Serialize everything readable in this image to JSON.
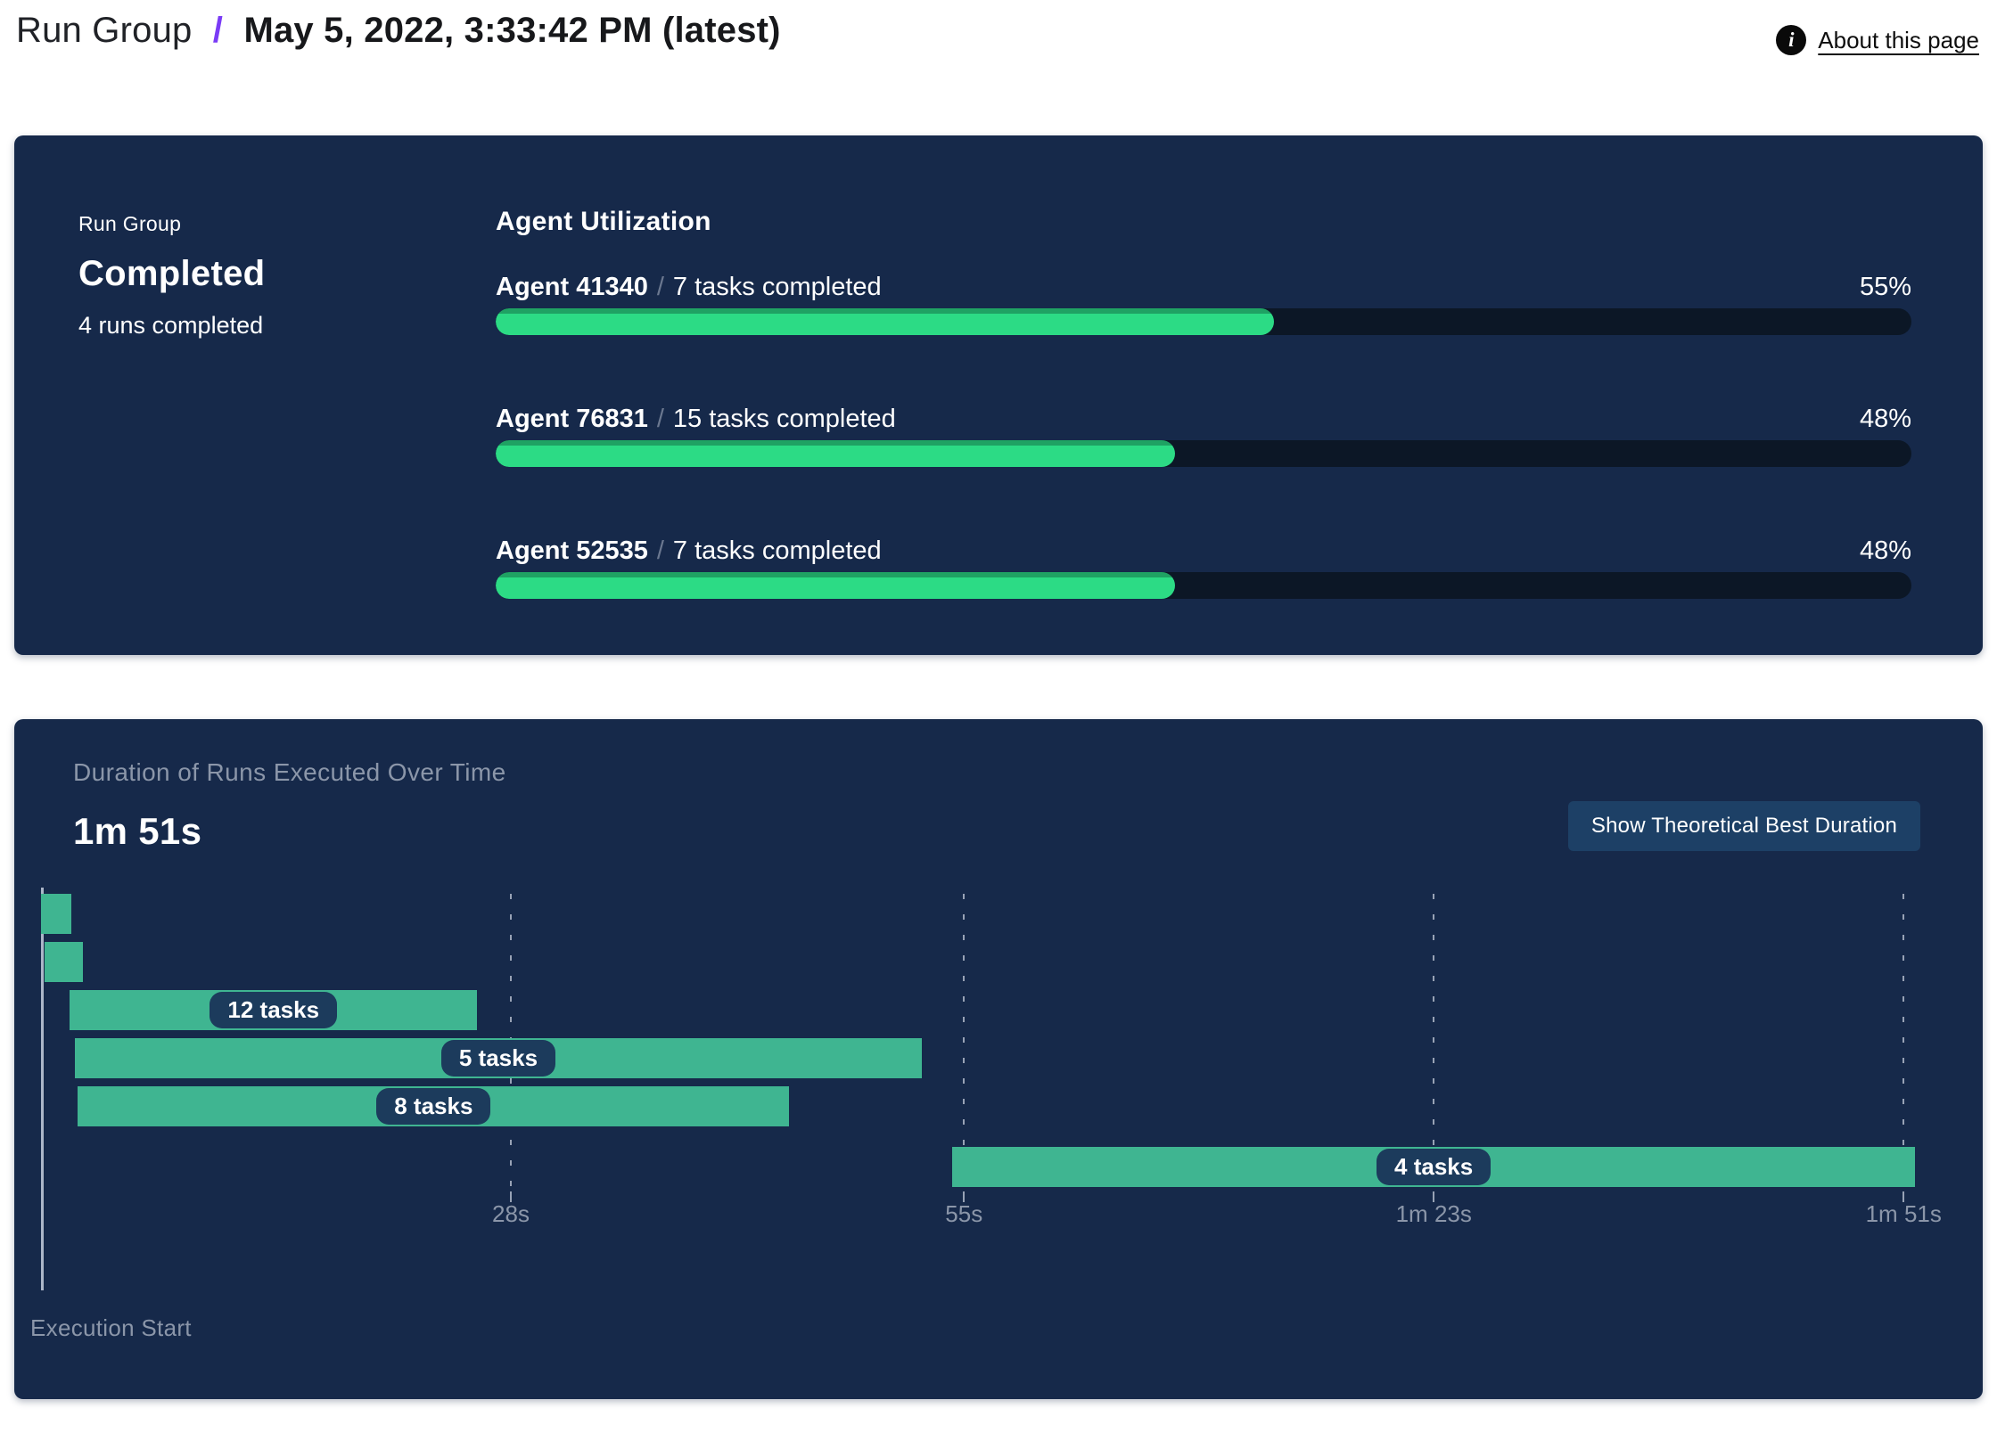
{
  "page": {
    "breadcrumb_root": "Run Group",
    "breadcrumb_separator": "/",
    "breadcrumb_current": "May 5, 2022, 3:33:42 PM (latest)",
    "about_link": "About this page",
    "info_icon_glyph": "i"
  },
  "summary_card": {
    "label": "Run Group",
    "status": "Completed",
    "runs_completed": "4 runs completed",
    "utilization_title": "Agent Utilization",
    "agents": [
      {
        "name": "Agent 41340",
        "separator": "/",
        "tasks": "7 tasks completed",
        "percent": "55%",
        "percent_value": 55
      },
      {
        "name": "Agent 76831",
        "separator": "/",
        "tasks": "15 tasks completed",
        "percent": "48%",
        "percent_value": 48
      },
      {
        "name": "Agent 52535",
        "separator": "/",
        "tasks": "7 tasks completed",
        "percent": "48%",
        "percent_value": 48
      }
    ]
  },
  "duration_card": {
    "title": "Duration of Runs Executed Over Time",
    "total_duration": "1m 51s",
    "button_label": "Show Theoretical Best Duration"
  },
  "chart_data": {
    "type": "gantt",
    "title": "Duration of Runs Executed Over Time",
    "total_duration_label": "1m 51s",
    "axis_max_seconds": 112,
    "x_axis_label": "Execution Start",
    "x_ticks": [
      {
        "seconds": 28,
        "label": "28s"
      },
      {
        "seconds": 55,
        "label": "55s"
      },
      {
        "seconds": 83,
        "label": "1m 23s"
      },
      {
        "seconds": 111,
        "label": "1m 51s"
      }
    ],
    "bars": [
      {
        "start_s": 0,
        "end_s": 1.8,
        "label": ""
      },
      {
        "start_s": 0.2,
        "end_s": 2.5,
        "label": ""
      },
      {
        "start_s": 1.7,
        "end_s": 26,
        "label": "12 tasks"
      },
      {
        "start_s": 2,
        "end_s": 52.5,
        "label": "5 tasks"
      },
      {
        "start_s": 2.2,
        "end_s": 44.6,
        "label": "8 tasks"
      },
      {
        "start_s": 54.3,
        "end_s": 111.7,
        "label": "4 tasks"
      }
    ]
  },
  "colors": {
    "accent_purple": "#7A3BF6",
    "card_background": "#16294A",
    "progress_track": "#0C1726",
    "progress_fill_green": "#2CDB85",
    "progress_fill_edge": "#1FA263",
    "gantt_bar_green": "#3FB591",
    "gantt_label_pill": "#1C3B5C",
    "muted_text": "#8B96A9",
    "button_background": "#1D4066",
    "gridline": "#C3CBD9",
    "axis_line": "#C7CFDE"
  }
}
